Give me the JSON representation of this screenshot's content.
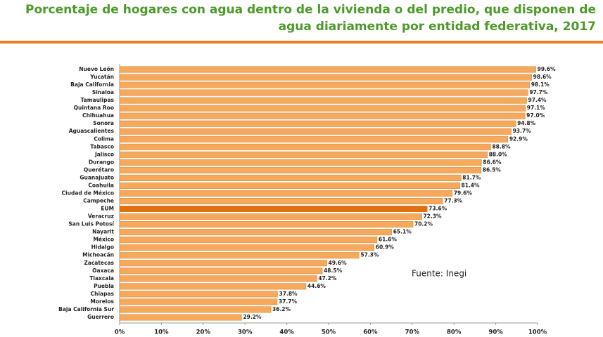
{
  "chart_data": {
    "type": "hbar",
    "title": [
      "Porcentaje de hogares con agua dentro de la vivienda o del predio, que disponen de",
      "agua diariamente por entidad federativa, 2017"
    ],
    "annotation": "Fuente: Inegi",
    "categories": [
      "Nuevo León",
      "Yucatán",
      "Baja California",
      "Sinaloa",
      "Tamaulipas",
      "Quintana Roo",
      "Chihuahua",
      "Sonora",
      "Aguascalientes",
      "Colima",
      "Tabasco",
      "Jalisco",
      "Durango",
      "Querétaro",
      "Guanajuato",
      "Coahuila",
      "Ciudad de México",
      "Campeche",
      "EUM",
      "Veracruz",
      "San Luis Potosí",
      "Nayarit",
      "México",
      "Hidalgo",
      "Michoacán",
      "Zacatecas",
      "Oaxaca",
      "Tlaxcala",
      "Puebla",
      "Chiapas",
      "Morelos",
      "Baja California Sur",
      "Guerrero"
    ],
    "values": [
      99.6,
      98.6,
      98.1,
      97.7,
      97.4,
      97.1,
      97.0,
      94.8,
      93.7,
      92.9,
      88.8,
      88.0,
      86.6,
      86.5,
      81.7,
      81.4,
      79.6,
      77.3,
      73.6,
      72.3,
      70.2,
      65.1,
      61.6,
      60.9,
      57.3,
      49.6,
      48.5,
      47.2,
      44.6,
      37.8,
      37.7,
      36.2,
      29.2
    ],
    "value_labels": [
      "99.6%",
      "98.6%",
      "98.1%",
      "97.7%",
      "97.4%",
      "97.1%",
      "97.0%",
      "94.8%",
      "93.7%",
      "92.9%",
      "88.8%",
      "88.0%",
      "86.6%",
      "86.5%",
      "81.7%",
      "81.4%",
      "79.6%",
      "77.3%",
      "73.6%",
      "72.3%",
      "70.2%",
      "65.1%",
      "61.6%",
      "60.9%",
      "57.3%",
      "49.6%",
      "48.5%",
      "47.2%",
      "44.6%",
      "37.8%",
      "37.7%",
      "36.2%",
      "29.2%"
    ],
    "colors": [
      "#f6a85c",
      "#f6a85c",
      "#f6a85c",
      "#f6a85c",
      "#f6a85c",
      "#f6a85c",
      "#f6a85c",
      "#f6a85c",
      "#f6a85c",
      "#f6a85c",
      "#f6a85c",
      "#f6a85c",
      "#f6a85c",
      "#f6a85c",
      "#f6a85c",
      "#f6a85c",
      "#f6a85c",
      "#f6a85c",
      "#e0700e",
      "#f6a85c",
      "#f6a85c",
      "#f6a85c",
      "#f6a85c",
      "#f6a85c",
      "#f6a85c",
      "#f6a85c",
      "#f6a85c",
      "#f6a85c",
      "#f6a85c",
      "#f6a85c",
      "#f6a85c",
      "#f6a85c",
      "#f6a85c"
    ],
    "xlim": [
      0,
      100
    ],
    "xticks": [
      {
        "value": 0,
        "label": "0%"
      },
      {
        "value": 10,
        "label": "10%"
      },
      {
        "value": 20,
        "label": "20%"
      },
      {
        "value": 30,
        "label": "30%"
      },
      {
        "value": 40,
        "label": "40%"
      },
      {
        "value": 50,
        "label": "50%"
      },
      {
        "value": 60,
        "label": "60%"
      },
      {
        "value": 70,
        "label": "70%"
      },
      {
        "value": 80,
        "label": "80%"
      },
      {
        "value": 90,
        "label": "90%"
      },
      {
        "value": 100,
        "label": "100%"
      }
    ],
    "grid": false
  }
}
